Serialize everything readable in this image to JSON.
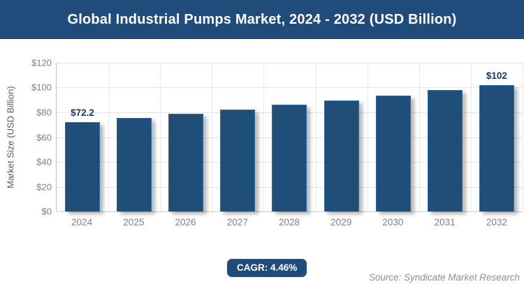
{
  "header": {
    "title": "Global Industrial Pumps Market, 2024 - 2032 (USD Billion)"
  },
  "chart_data": {
    "type": "bar",
    "title": "Global Industrial Pumps Market, 2024 - 2032 (USD Billion)",
    "categories": [
      "2024",
      "2025",
      "2026",
      "2027",
      "2028",
      "2029",
      "2030",
      "2031",
      "2032"
    ],
    "values": [
      72.2,
      75.4,
      78.8,
      82.3,
      86.0,
      89.8,
      93.8,
      98.0,
      102
    ],
    "point_labels": [
      "$72.2",
      "",
      "",
      "",
      "",
      "",
      "",
      "",
      "$102"
    ],
    "xlabel": "",
    "ylabel": "Market Size (USD Billion)",
    "ylim": [
      0,
      120
    ],
    "ytick_step": 20,
    "ytick_labels": [
      "$0",
      "$20",
      "$40",
      "$60",
      "$80",
      "$100",
      "$120"
    ],
    "grid": true,
    "legend_position": "none",
    "bar_color": "#1F4E79",
    "bar_border_color": "#2E6DA4"
  },
  "footer": {
    "cagr_label": "CAGR: 4.46%",
    "source": "Source: Syndicate Market Research"
  },
  "colors": {
    "banner_bg": "#1F4C7B",
    "banner_text": "#FFFFFF",
    "axis_text": "#7F7F7F",
    "gridline": "#E4E4E4",
    "value_label": "#17375E",
    "source_text": "#8A9096"
  }
}
